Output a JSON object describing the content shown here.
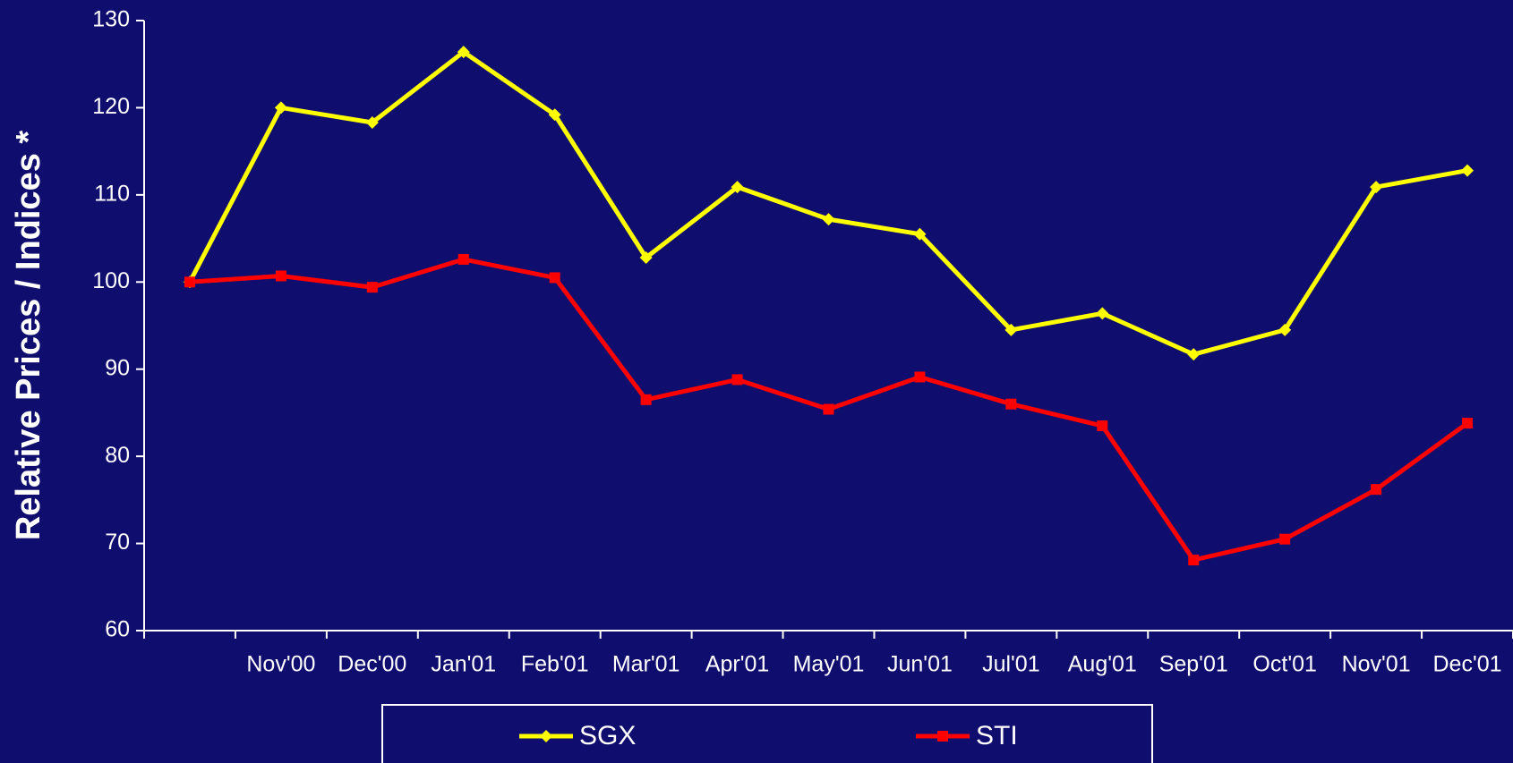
{
  "chart_data": {
    "type": "line",
    "y_label": "Relative Prices / Indices *",
    "categories": [
      null,
      "Nov'00",
      "Dec'00",
      "Jan'01",
      "Feb'01",
      "Mar'01",
      "Apr'01",
      "May'01",
      "Jun'01",
      "Jul'01",
      "Aug'01",
      "Sep'01",
      "Oct'01",
      "Nov'01",
      "Dec'01"
    ],
    "series": [
      {
        "name": "SGX",
        "color": "#ffff00",
        "marker": "diamond",
        "values": [
          100,
          120,
          118.3,
          126.4,
          119.2,
          102.8,
          110.9,
          107.2,
          105.5,
          94.5,
          96.4,
          91.7,
          94.5,
          110.9,
          112.8
        ]
      },
      {
        "name": "STI",
        "color": "#ff0000",
        "marker": "square",
        "values": [
          100,
          100.7,
          99.4,
          102.6,
          100.5,
          86.5,
          88.8,
          85.4,
          89.1,
          86,
          83.5,
          68.1,
          70.5,
          76.2,
          83.8
        ]
      }
    ],
    "ylim": [
      60,
      130
    ],
    "yticks": [
      60,
      70,
      80,
      90,
      100,
      110,
      120,
      130
    ],
    "grid": false,
    "legend": "bottom"
  }
}
